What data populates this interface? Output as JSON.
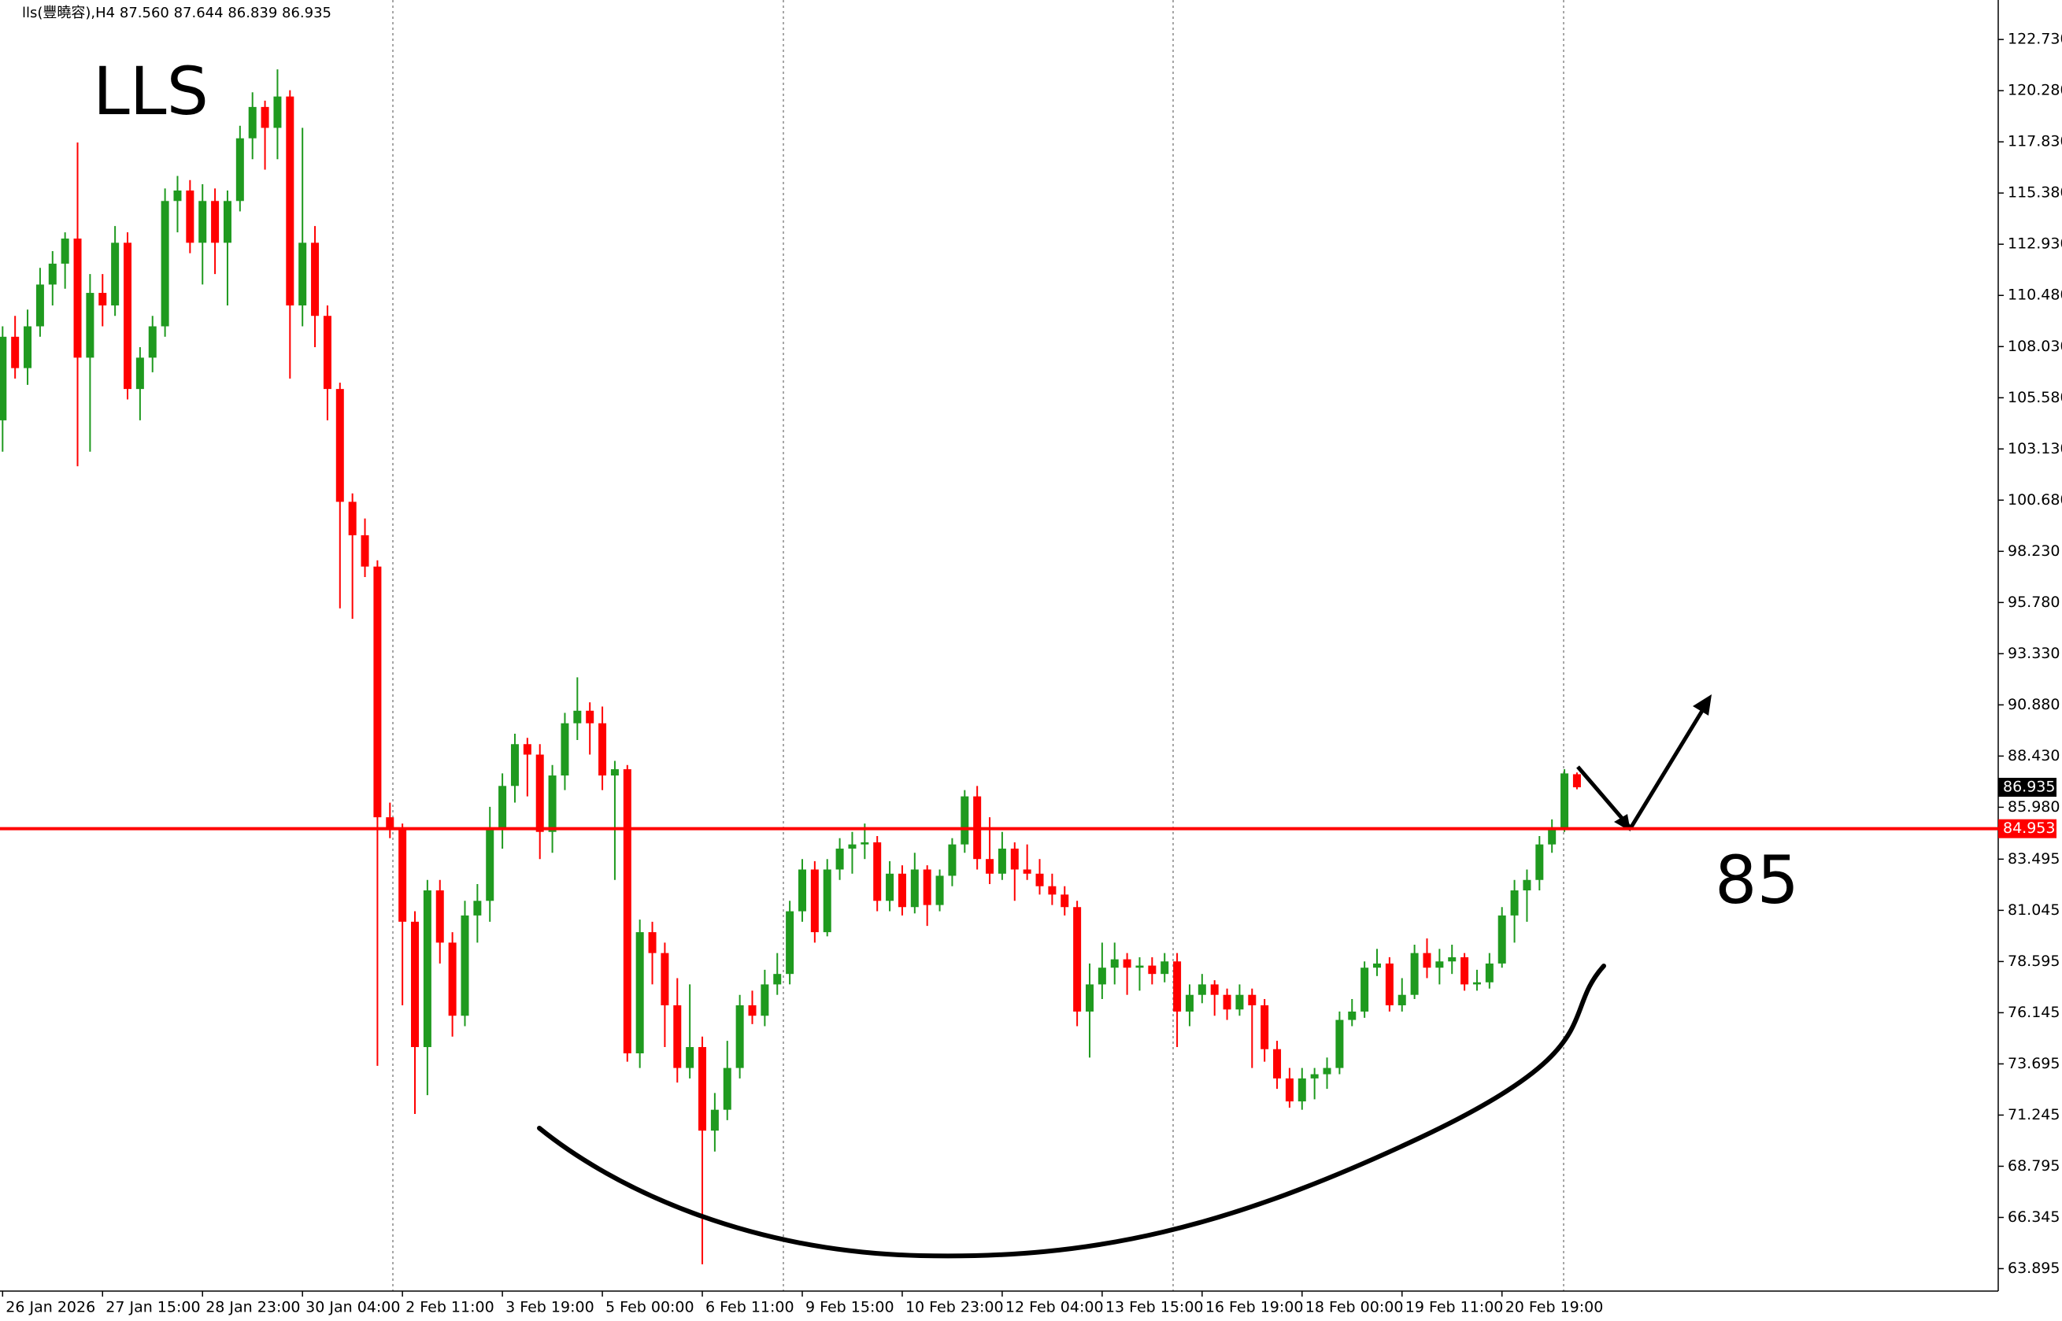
{
  "chart_data": {
    "type": "candlestick",
    "header": "lls(豐曉容),H4",
    "header_ohlc": [
      "87.560",
      "87.644",
      "86.839",
      "86.935"
    ],
    "title": "LLS",
    "annotation": "85",
    "up_color": "#1f9a1f",
    "down_color": "#ff0000",
    "level_color": "#ff0000",
    "ylim": [
      62.82,
      124.62
    ],
    "yticks": [
      {
        "value": 122.73,
        "label": "122.730"
      },
      {
        "value": 120.28,
        "label": "120.280"
      },
      {
        "value": 117.83,
        "label": "117.830"
      },
      {
        "value": 115.38,
        "label": "115.380"
      },
      {
        "value": 112.93,
        "label": "112.930"
      },
      {
        "value": 110.48,
        "label": "110.480"
      },
      {
        "value": 108.03,
        "label": "108.030"
      },
      {
        "value": 105.58,
        "label": "105.580"
      },
      {
        "value": 103.13,
        "label": "103.130"
      },
      {
        "value": 100.68,
        "label": "100.680"
      },
      {
        "value": 98.23,
        "label": "98.230"
      },
      {
        "value": 95.78,
        "label": "95.780"
      },
      {
        "value": 93.33,
        "label": "93.330"
      },
      {
        "value": 90.88,
        "label": "90.880"
      },
      {
        "value": 88.43,
        "label": "88.430"
      },
      {
        "value": 85.98,
        "label": "85.980"
      },
      83.495,
      81.045,
      78.595,
      76.145,
      73.695,
      71.245,
      68.795,
      66.345,
      63.895
    ],
    "level": {
      "value": 84.953,
      "label": "84.953"
    },
    "current_price": {
      "value": 86.935,
      "label": "86.935"
    },
    "categories": [
      "26 Jan 2026",
      null,
      null,
      null,
      null,
      null,
      null,
      null,
      "27 Jan 15:00",
      null,
      null,
      null,
      null,
      null,
      null,
      null,
      "28 Jan 23:00",
      null,
      null,
      null,
      null,
      null,
      null,
      null,
      "30 Jan 04:00",
      null,
      null,
      null,
      null,
      null,
      null,
      null,
      "2 Feb 11:00",
      null,
      null,
      null,
      null,
      null,
      null,
      null,
      "3 Feb 19:00",
      null,
      null,
      null,
      null,
      null,
      null,
      null,
      "5 Feb 00:00",
      null,
      null,
      null,
      null,
      null,
      null,
      null,
      "6 Feb 11:00",
      null,
      null,
      null,
      null,
      null,
      null,
      null,
      "9 Feb 15:00",
      null,
      null,
      null,
      null,
      null,
      null,
      null,
      "10 Feb 23:00",
      null,
      null,
      null,
      null,
      null,
      null,
      null,
      "12 Feb 04:00",
      null,
      null,
      null,
      null,
      null,
      null,
      null,
      "13 Feb 15:00",
      null,
      null,
      null,
      null,
      null,
      null,
      null,
      "16 Feb 19:00",
      null,
      null,
      null,
      null,
      null,
      null,
      null,
      "18 Feb 00:00",
      null,
      null,
      null,
      null,
      null,
      null,
      null,
      "19 Feb 11:00",
      null,
      null,
      null,
      null,
      null,
      null,
      null,
      "20 Feb 19:00",
      null,
      null,
      null,
      null,
      null,
      null
    ],
    "candles": [
      [
        104.5,
        109.0,
        103.0,
        108.5
      ],
      [
        108.5,
        109.5,
        106.5,
        107.0
      ],
      [
        107.0,
        109.8,
        106.2,
        109.0
      ],
      [
        109.0,
        111.8,
        108.5,
        111.0
      ],
      [
        111.0,
        112.6,
        110.0,
        112.0
      ],
      [
        112.0,
        113.5,
        110.8,
        113.2
      ],
      [
        113.2,
        117.8,
        102.3,
        107.5
      ],
      [
        107.5,
        111.5,
        103.0,
        110.6
      ],
      [
        110.6,
        111.5,
        109.0,
        110.0
      ],
      [
        110.0,
        113.8,
        109.5,
        113.0
      ],
      [
        113.0,
        113.5,
        105.5,
        106.0
      ],
      [
        106.0,
        108.0,
        104.5,
        107.5
      ],
      [
        107.5,
        109.5,
        106.8,
        109.0
      ],
      [
        109.0,
        115.6,
        108.5,
        115.0
      ],
      [
        115.0,
        116.2,
        113.5,
        115.5
      ],
      [
        115.5,
        116.0,
        112.5,
        113.0
      ],
      [
        113.0,
        115.8,
        111.0,
        115.0
      ],
      [
        115.0,
        115.6,
        111.5,
        113.0
      ],
      [
        113.0,
        115.5,
        110.0,
        115.0
      ],
      [
        115.0,
        118.6,
        114.5,
        118.0
      ],
      [
        118.0,
        120.2,
        117.0,
        119.5
      ],
      [
        119.5,
        119.8,
        116.5,
        118.5
      ],
      [
        118.5,
        121.3,
        117.0,
        120.0
      ],
      [
        120.0,
        120.3,
        106.5,
        110.0
      ],
      [
        110.0,
        118.5,
        109.0,
        113.0
      ],
      [
        113.0,
        113.8,
        108.0,
        109.5
      ],
      [
        109.5,
        110.0,
        104.5,
        106.0
      ],
      [
        106.0,
        106.3,
        95.5,
        100.6
      ],
      [
        100.6,
        101.0,
        95.0,
        99.0
      ],
      [
        99.0,
        99.8,
        97.0,
        97.5
      ],
      [
        97.5,
        97.8,
        73.6,
        85.5
      ],
      [
        85.5,
        86.2,
        84.5,
        84.9
      ],
      [
        84.9,
        85.2,
        76.5,
        80.5
      ],
      [
        80.5,
        81.0,
        71.3,
        74.5
      ],
      [
        74.5,
        82.5,
        72.2,
        82.0
      ],
      [
        82.0,
        82.5,
        78.5,
        79.5
      ],
      [
        79.5,
        80.0,
        75.0,
        76.0
      ],
      [
        76.0,
        81.5,
        75.5,
        80.8
      ],
      [
        80.8,
        82.3,
        79.5,
        81.5
      ],
      [
        81.5,
        86.0,
        80.5,
        85.0
      ],
      [
        85.0,
        87.6,
        84.0,
        87.0
      ],
      [
        87.0,
        89.5,
        86.2,
        89.0
      ],
      [
        89.0,
        89.3,
        86.5,
        88.5
      ],
      [
        88.5,
        89.0,
        83.5,
        84.8
      ],
      [
        84.8,
        88.0,
        83.8,
        87.5
      ],
      [
        87.5,
        90.5,
        86.8,
        90.0
      ],
      [
        90.0,
        92.2,
        89.2,
        90.6
      ],
      [
        90.6,
        91.0,
        88.5,
        90.0
      ],
      [
        90.0,
        90.8,
        86.8,
        87.5
      ],
      [
        87.5,
        88.2,
        82.5,
        87.8
      ],
      [
        87.8,
        88.0,
        73.8,
        74.2
      ],
      [
        74.2,
        80.6,
        73.5,
        80.0
      ],
      [
        80.0,
        80.5,
        77.5,
        79.0
      ],
      [
        79.0,
        79.5,
        74.5,
        76.5
      ],
      [
        76.5,
        77.8,
        72.8,
        73.5
      ],
      [
        73.5,
        77.5,
        73.0,
        74.5
      ],
      [
        74.5,
        75.0,
        64.1,
        70.5
      ],
      [
        70.5,
        72.3,
        69.5,
        71.5
      ],
      [
        71.5,
        74.8,
        71.0,
        73.5
      ],
      [
        73.5,
        77.0,
        73.0,
        76.5
      ],
      [
        76.5,
        77.2,
        75.6,
        76.0
      ],
      [
        76.0,
        78.2,
        75.5,
        77.5
      ],
      [
        77.5,
        79.0,
        77.0,
        78.0
      ],
      [
        78.0,
        81.5,
        77.5,
        81.0
      ],
      [
        81.0,
        83.5,
        80.5,
        83.0
      ],
      [
        83.0,
        83.4,
        79.5,
        80.0
      ],
      [
        80.0,
        83.5,
        79.8,
        83.0
      ],
      [
        83.0,
        84.5,
        82.5,
        84.0
      ],
      [
        84.0,
        84.8,
        82.8,
        84.2
      ],
      [
        84.2,
        85.2,
        83.5,
        84.3
      ],
      [
        84.3,
        84.6,
        81.0,
        81.5
      ],
      [
        81.5,
        83.4,
        81.0,
        82.8
      ],
      [
        82.8,
        83.2,
        80.8,
        81.2
      ],
      [
        81.2,
        83.8,
        80.9,
        83.0
      ],
      [
        83.0,
        83.2,
        80.3,
        81.3
      ],
      [
        81.3,
        83.0,
        81.0,
        82.7
      ],
      [
        82.7,
        84.5,
        82.2,
        84.2
      ],
      [
        84.2,
        86.8,
        83.8,
        86.5
      ],
      [
        86.5,
        87.0,
        83.0,
        83.5
      ],
      [
        83.5,
        85.5,
        82.3,
        82.8
      ],
      [
        82.8,
        84.8,
        82.5,
        84.0
      ],
      [
        84.0,
        84.3,
        81.5,
        83.0
      ],
      [
        83.0,
        84.2,
        82.5,
        82.8
      ],
      [
        82.8,
        83.5,
        81.8,
        82.2
      ],
      [
        82.2,
        82.8,
        81.3,
        81.8
      ],
      [
        81.8,
        82.2,
        80.8,
        81.2
      ],
      [
        81.2,
        81.5,
        75.5,
        76.2
      ],
      [
        76.2,
        78.5,
        74.0,
        77.5
      ],
      [
        77.5,
        79.5,
        76.8,
        78.3
      ],
      [
        78.3,
        79.5,
        77.5,
        78.7
      ],
      [
        78.7,
        79.0,
        77.0,
        78.3
      ],
      [
        78.3,
        78.8,
        77.2,
        78.4
      ],
      [
        78.4,
        78.8,
        77.5,
        78.0
      ],
      [
        78.0,
        79.0,
        77.6,
        78.6
      ],
      [
        78.6,
        79.0,
        74.5,
        76.2
      ],
      [
        76.2,
        77.5,
        75.5,
        77.0
      ],
      [
        77.0,
        78.0,
        76.6,
        77.5
      ],
      [
        77.5,
        77.7,
        76.0,
        77.0
      ],
      [
        77.0,
        77.3,
        75.8,
        76.3
      ],
      [
        76.3,
        77.5,
        76.0,
        77.0
      ],
      [
        77.0,
        77.3,
        73.5,
        76.5
      ],
      [
        76.5,
        76.8,
        73.8,
        74.4
      ],
      [
        74.4,
        74.8,
        72.5,
        73.0
      ],
      [
        73.0,
        73.5,
        71.6,
        71.9
      ],
      [
        71.9,
        73.5,
        71.5,
        73.0
      ],
      [
        73.0,
        73.5,
        72.0,
        73.2
      ],
      [
        73.2,
        74.0,
        72.5,
        73.5
      ],
      [
        73.5,
        76.2,
        73.2,
        75.8
      ],
      [
        75.8,
        76.8,
        75.5,
        76.2
      ],
      [
        76.2,
        78.6,
        75.9,
        78.3
      ],
      [
        78.3,
        79.2,
        77.9,
        78.5
      ],
      [
        78.5,
        78.8,
        76.2,
        76.5
      ],
      [
        76.5,
        77.8,
        76.2,
        77.0
      ],
      [
        77.0,
        79.4,
        76.8,
        79.0
      ],
      [
        79.0,
        79.7,
        77.8,
        78.3
      ],
      [
        78.3,
        79.2,
        77.5,
        78.6
      ],
      [
        78.6,
        79.4,
        78.0,
        78.8
      ],
      [
        78.8,
        79.0,
        77.2,
        77.5
      ],
      [
        77.5,
        78.2,
        77.2,
        77.6
      ],
      [
        77.6,
        79.0,
        77.3,
        78.5
      ],
      [
        78.5,
        81.2,
        78.3,
        80.8
      ],
      [
        80.8,
        82.5,
        79.5,
        82.0
      ],
      [
        82.0,
        83.0,
        80.5,
        82.5
      ],
      [
        82.5,
        84.6,
        82.0,
        84.2
      ],
      [
        84.2,
        85.4,
        83.8,
        85.0
      ],
      [
        85.0,
        87.8,
        84.8,
        87.6
      ],
      [
        87.56,
        87.644,
        86.839,
        86.935
      ]
    ]
  }
}
